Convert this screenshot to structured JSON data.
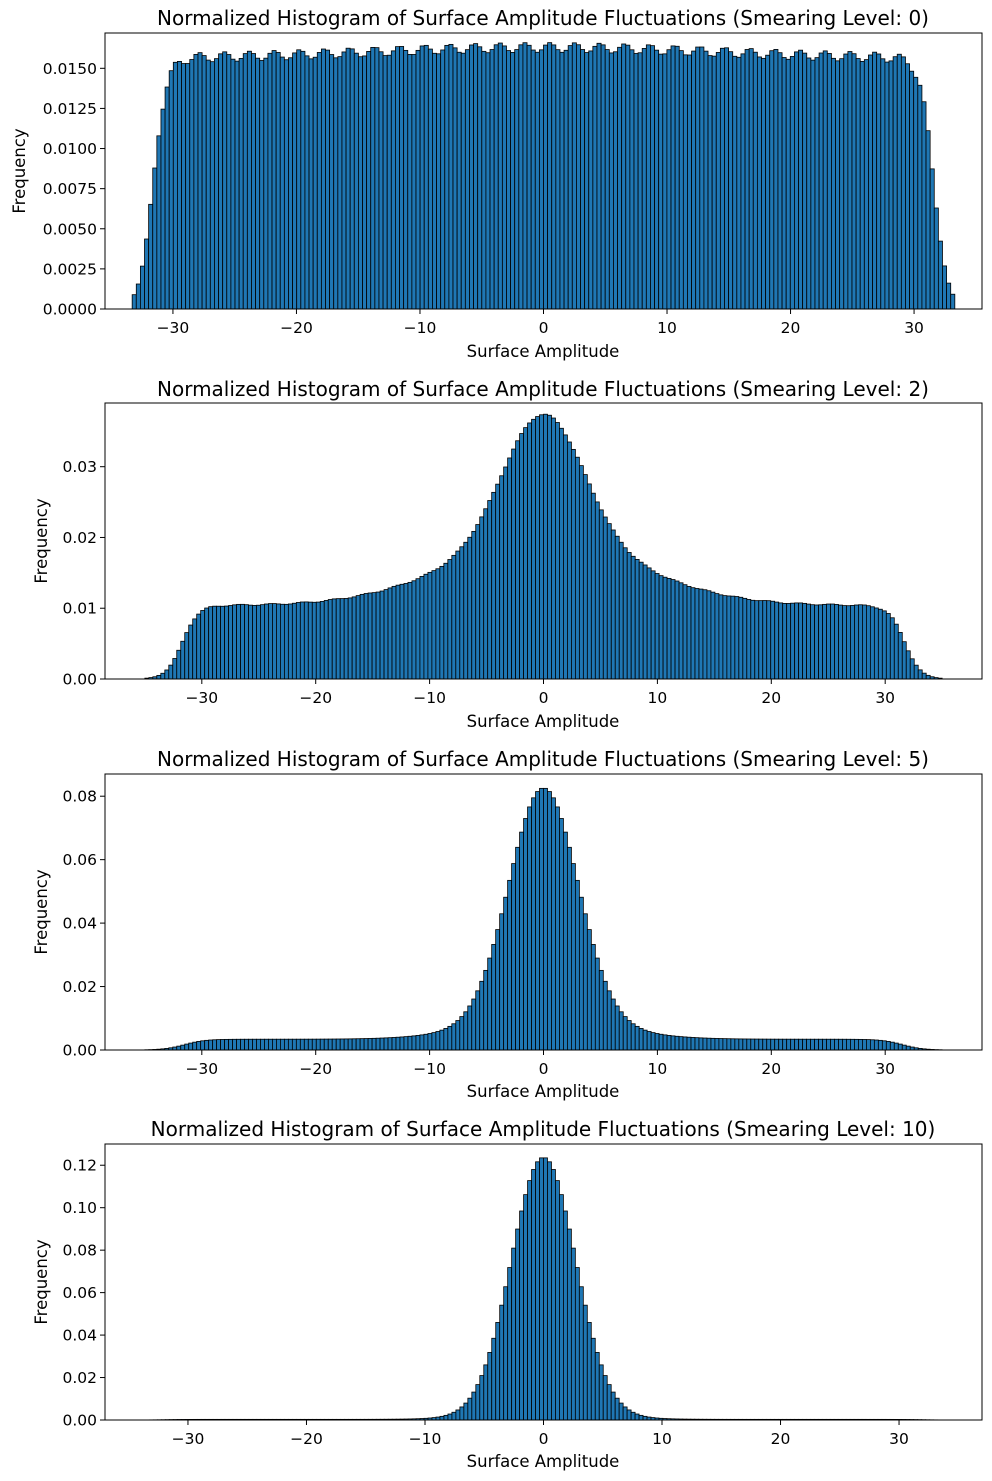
{
  "colors": {
    "bar_fill": "#1f77b4",
    "bar_edge": "#000000",
    "background": "#ffffff"
  },
  "chart_data": [
    {
      "type": "bar",
      "title": "Normalized Histogram of Surface Amplitude Fluctuations (Smearing Level: 0)",
      "xlabel": "Surface Amplitude",
      "ylabel": "Frequency",
      "xlim": [
        -35.5,
        35.5
      ],
      "ylim": [
        0,
        0.0172
      ],
      "xticks": [
        -30,
        -20,
        -10,
        0,
        10,
        20,
        30
      ],
      "xtick_labels": [
        "−30",
        "−20",
        "−10",
        "0",
        "10",
        "20",
        "30"
      ],
      "yticks": [
        0,
        0.0025,
        0.005,
        0.0075,
        0.01,
        0.0125,
        0.015
      ],
      "ytick_labels": [
        "0.0000",
        "0.0025",
        "0.0050",
        "0.0075",
        "0.0100",
        "0.0125",
        "0.0150"
      ],
      "bin_range": [
        -33.3,
        33.3
      ],
      "bins": 200,
      "shape": {
        "kind": "uniform",
        "plateau": 0.0156,
        "edge_low": -31.6,
        "edge_high": 31.6,
        "edge_width": 0.55,
        "center_bump": 0.0007,
        "ripple": 0.0003
      },
      "grid": false,
      "legend": "none"
    },
    {
      "type": "bar",
      "title": "Normalized Histogram of Surface Amplitude Fluctuations (Smearing Level: 2)",
      "xlabel": "Surface Amplitude",
      "ylabel": "Frequency",
      "xlim": [
        -38.5,
        38.5
      ],
      "ylim": [
        0,
        0.039
      ],
      "xticks": [
        -30,
        -20,
        -10,
        0,
        10,
        20,
        30
      ],
      "xtick_labels": [
        "−30",
        "−20",
        "−10",
        "0",
        "10",
        "20",
        "30"
      ],
      "yticks": [
        0,
        0.01,
        0.02,
        0.03
      ],
      "ytick_labels": [
        "0.00",
        "0.01",
        "0.02",
        "0.03"
      ],
      "bin_range": [
        -35,
        35
      ],
      "bins": 200,
      "shape": {
        "kind": "peak_on_plateau",
        "plateau": 0.0104,
        "edge_low": -31.7,
        "edge_high": 31.7,
        "edge_width": 0.7,
        "peak": 0.0374,
        "core_width": 3.5,
        "wing_amp": 0.0085,
        "wing_width": 8.5,
        "ripple": 0.0001
      },
      "grid": false,
      "legend": "none"
    },
    {
      "type": "bar",
      "title": "Normalized Histogram of Surface Amplitude Fluctuations (Smearing Level: 5)",
      "xlabel": "Surface Amplitude",
      "ylabel": "Frequency",
      "xlim": [
        -38.5,
        38.5
      ],
      "ylim": [
        0,
        0.087
      ],
      "xticks": [
        -30,
        -20,
        -10,
        0,
        10,
        20,
        30
      ],
      "xtick_labels": [
        "−30",
        "−20",
        "−10",
        "0",
        "10",
        "20",
        "30"
      ],
      "yticks": [
        0,
        0.02,
        0.04,
        0.06,
        0.08
      ],
      "ytick_labels": [
        "0.00",
        "0.02",
        "0.04",
        "0.06",
        "0.08"
      ],
      "bin_range": [
        -35,
        35
      ],
      "bins": 200,
      "shape": {
        "kind": "peak_on_plateau",
        "plateau": 0.0034,
        "edge_low": -31.5,
        "edge_high": 31.5,
        "edge_width": 0.9,
        "peak": 0.0826,
        "core_width": 3.0,
        "wing_amp": 0.006,
        "wing_width": 6.0,
        "ripple": 0.0
      },
      "grid": false,
      "legend": "none"
    },
    {
      "type": "bar",
      "title": "Normalized Histogram of Surface Amplitude Fluctuations (Smearing Level: 10)",
      "xlabel": "Surface Amplitude",
      "ylabel": "Frequency",
      "xlim": [
        -37,
        37
      ],
      "ylim": [
        0,
        0.13
      ],
      "xticks": [
        -30,
        -20,
        -10,
        0,
        10,
        20,
        30
      ],
      "xtick_labels": [
        "−30",
        "−20",
        "−10",
        "0",
        "10",
        "20",
        "30"
      ],
      "yticks": [
        0,
        0.02,
        0.04,
        0.06,
        0.08,
        0.1,
        0.12
      ],
      "ytick_labels": [
        "0.00",
        "0.02",
        "0.04",
        "0.06",
        "0.08",
        "0.10",
        "0.12"
      ],
      "bin_range": [
        -33.6,
        33.6
      ],
      "bins": 200,
      "shape": {
        "kind": "peak_on_plateau",
        "plateau": 0.0003,
        "edge_low": -32,
        "edge_high": 32,
        "edge_width": 0.8,
        "peak": 0.1237,
        "core_width": 2.7,
        "wing_amp": 0.004,
        "wing_width": 4.5,
        "ripple": 0.0
      },
      "grid": false,
      "legend": "none"
    }
  ]
}
